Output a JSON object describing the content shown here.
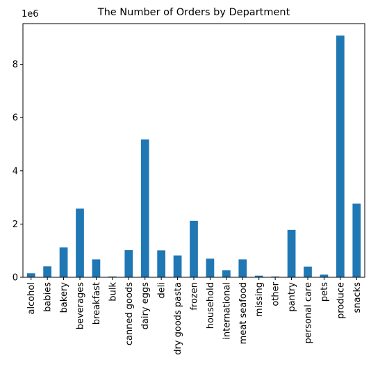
{
  "chart_data": {
    "type": "bar",
    "title": "The Number of Orders by Department",
    "xlabel": "",
    "ylabel": "",
    "offset_text": "1e6",
    "categories": [
      "alcohol",
      "babies",
      "bakery",
      "beverages",
      "breakfast",
      "bulk",
      "canned goods",
      "dairy eggs",
      "deli",
      "dry goods pasta",
      "frozen",
      "household",
      "international",
      "meat seafood",
      "missing",
      "other",
      "pantry",
      "personal care",
      "pets",
      "produce",
      "snacks"
    ],
    "values": [
      0.15,
      0.41,
      1.12,
      2.58,
      0.67,
      0.03,
      1.02,
      5.18,
      1.01,
      0.82,
      2.12,
      0.7,
      0.26,
      0.67,
      0.06,
      0.03,
      1.78,
      0.4,
      0.1,
      9.08,
      2.77
    ],
    "value_multiplier": 1000000,
    "ylim": [
      0,
      9.53
    ],
    "yticks": [
      0,
      2,
      4,
      6,
      8
    ],
    "grid": false,
    "legend": "none",
    "bar_color": "#1f77b4"
  }
}
